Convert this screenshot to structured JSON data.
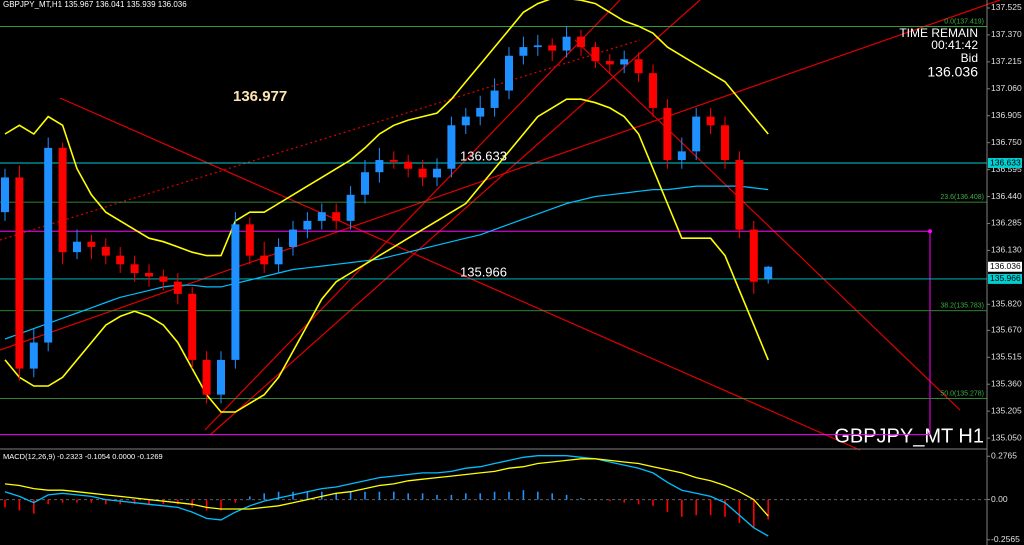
{
  "header": "GBPJPY_MT,H1  135.967 136.041 135.939 136.036",
  "info": {
    "time_label": "TIME REMAIN",
    "time": "00:41:42",
    "bid_label": "Bid"
  },
  "watermark": "GBPJPY_MT H1",
  "chart_data": [
    {
      "type": "candlestick",
      "ylim": [
        134.993,
        137.571
      ],
      "yticks": [
        137.525,
        {
          "value": 137.37,
          "label": "137.370"
        },
        137.215,
        {
          "value": 137.06,
          "label": "137.060"
        },
        136.905,
        {
          "value": 136.75,
          "label": "136.750"
        },
        136.595,
        {
          "value": 136.44,
          "label": "136.440"
        },
        136.285,
        {
          "value": 136.13,
          "label": "136.130"
        },
        {
          "value": 135.82,
          "label": "135.820"
        },
        {
          "value": 135.67,
          "label": "135.670"
        },
        135.515,
        {
          "value": 135.36,
          "label": "135.360"
        },
        135.205,
        {
          "value": 135.05,
          "label": "135.050"
        }
      ],
      "up_color": "#1e90ff",
      "down_color": "#ff0000",
      "open": [
        136.35,
        136.55,
        135.45,
        135.6,
        136.72,
        136.12,
        136.18,
        136.15,
        136.1,
        136.05,
        136.0,
        135.98,
        135.95,
        135.88,
        135.5,
        135.3,
        135.5,
        136.28,
        136.1,
        136.05,
        136.15,
        136.25,
        136.3,
        136.35,
        136.3,
        136.45,
        136.58,
        136.65,
        136.64,
        136.6,
        136.55,
        136.6,
        136.85,
        136.9,
        136.95,
        137.05,
        137.25,
        137.3,
        137.31,
        137.28,
        137.36,
        137.3,
        137.22,
        137.2,
        137.23,
        137.15,
        136.95,
        136.65,
        136.7,
        136.9,
        136.85,
        136.65,
        136.25,
        135.967
      ],
      "high": [
        136.6,
        136.62,
        135.68,
        136.78,
        136.75,
        136.25,
        136.22,
        136.2,
        136.15,
        136.1,
        136.05,
        136.02,
        136.0,
        135.92,
        135.55,
        135.55,
        136.35,
        136.32,
        136.18,
        136.2,
        136.3,
        136.35,
        136.4,
        136.4,
        136.5,
        136.65,
        136.72,
        136.7,
        136.68,
        136.65,
        136.66,
        136.9,
        136.95,
        137.02,
        137.12,
        137.3,
        137.36,
        137.37,
        137.35,
        137.42,
        137.4,
        137.33,
        137.26,
        137.28,
        137.27,
        137.2,
        137.0,
        136.78,
        136.95,
        136.95,
        136.9,
        136.7,
        136.3,
        136.041
      ],
      "low": [
        136.3,
        135.38,
        135.4,
        135.55,
        136.05,
        136.08,
        136.08,
        136.05,
        136.0,
        135.95,
        135.92,
        135.9,
        135.82,
        135.45,
        135.25,
        135.25,
        135.45,
        136.05,
        136.0,
        136.0,
        136.1,
        136.2,
        136.25,
        136.25,
        136.25,
        136.4,
        136.52,
        136.6,
        136.55,
        136.5,
        136.5,
        136.55,
        136.8,
        136.85,
        136.9,
        137.0,
        137.2,
        137.25,
        137.22,
        137.24,
        137.25,
        137.18,
        137.15,
        137.15,
        137.1,
        136.9,
        136.6,
        136.6,
        136.65,
        136.8,
        136.6,
        136.2,
        135.88,
        135.939
      ],
      "close": [
        136.55,
        135.45,
        135.6,
        136.72,
        136.12,
        136.18,
        136.15,
        136.1,
        136.05,
        136.0,
        135.98,
        135.95,
        135.88,
        135.5,
        135.3,
        135.5,
        136.28,
        136.1,
        136.05,
        136.15,
        136.25,
        136.3,
        136.35,
        136.3,
        136.45,
        136.58,
        136.65,
        136.64,
        136.6,
        136.55,
        136.6,
        136.85,
        136.9,
        136.95,
        137.05,
        137.25,
        137.3,
        137.31,
        137.28,
        137.36,
        137.3,
        137.22,
        137.2,
        137.23,
        137.15,
        136.95,
        136.65,
        136.7,
        136.9,
        136.85,
        136.65,
        136.25,
        135.95,
        136.036
      ],
      "series": [
        {
          "color": "#00bfff",
          "values": [
            135.62,
            135.65,
            135.68,
            135.71,
            135.74,
            135.77,
            135.8,
            135.83,
            135.86,
            135.88,
            135.9,
            135.92,
            135.93,
            135.93,
            135.92,
            135.92,
            135.94,
            135.96,
            135.98,
            136.0,
            136.02,
            136.03,
            136.04,
            136.05,
            136.06,
            136.07,
            136.08,
            136.1,
            136.12,
            136.14,
            136.16,
            136.18,
            136.2,
            136.22,
            136.25,
            136.28,
            136.31,
            136.34,
            136.37,
            136.4,
            136.42,
            136.44,
            136.45,
            136.46,
            136.47,
            136.48,
            136.48,
            136.49,
            136.5,
            136.5,
            136.5,
            136.5,
            136.49,
            136.48
          ]
        },
        {
          "color": "#ffff00",
          "values": [
            136.8,
            136.85,
            136.8,
            136.9,
            136.85,
            136.6,
            136.45,
            136.35,
            136.3,
            136.25,
            136.2,
            136.18,
            136.15,
            136.12,
            136.1,
            136.1,
            136.3,
            136.35,
            136.35,
            136.4,
            136.45,
            136.5,
            136.55,
            136.6,
            136.65,
            136.72,
            136.8,
            136.85,
            136.88,
            136.9,
            136.92,
            137.0,
            137.1,
            137.2,
            137.3,
            137.4,
            137.5,
            137.55,
            137.58,
            137.58,
            137.57,
            137.55,
            137.5,
            137.45,
            137.42,
            137.38,
            137.3,
            137.25,
            137.2,
            137.15,
            137.1,
            137.0,
            136.9,
            136.8
          ]
        },
        {
          "color": "#ffff00",
          "values": [
            135.5,
            135.4,
            135.35,
            135.35,
            135.4,
            135.5,
            135.6,
            135.7,
            135.75,
            135.78,
            135.75,
            135.7,
            135.6,
            135.45,
            135.3,
            135.2,
            135.2,
            135.25,
            135.3,
            135.4,
            135.55,
            135.7,
            135.85,
            135.95,
            136.0,
            136.05,
            136.1,
            136.15,
            136.2,
            136.25,
            136.3,
            136.35,
            136.4,
            136.5,
            136.6,
            136.7,
            136.8,
            136.9,
            136.95,
            137.0,
            137.0,
            136.98,
            136.95,
            136.9,
            136.8,
            136.6,
            136.4,
            136.2,
            136.2,
            136.2,
            136.1,
            135.9,
            135.7,
            135.5
          ]
        }
      ],
      "levels": [
        {
          "value": 136.633,
          "color": "#00ced1"
        },
        {
          "value": 135.966,
          "color": "#00ced1"
        }
      ],
      "fib_levels": [
        {
          "value": 137.419,
          "label": "0.0(137.419)"
        },
        {
          "value": 136.408,
          "label": "23.6(136.408)"
        },
        {
          "value": 135.783,
          "label": "38.2(135.783)"
        },
        {
          "value": 135.278,
          "label": "50.0(135.278)"
        }
      ],
      "fib_color": "#3cb043",
      "rectangle": {
        "top": 136.24,
        "bottom": 135.07,
        "color": "#ff00ff"
      },
      "annotations": [
        {
          "value": 136.977,
          "color": "#ffe4b5"
        },
        {
          "value": 136.633,
          "color": "#ffffff"
        },
        {
          "value": 135.966,
          "color": "#ffffff"
        }
      ]
    },
    {
      "type": "macd",
      "title": "MACD(12,26,9) -0.2323 -0.1054 0.0000 -0.1269",
      "ylim": [
        -0.29,
        0.31
      ],
      "yticks": [
        0.2765,
        {
          "value": 0,
          "label": "0.00"
        },
        -0.2565
      ],
      "pos_color": "#1e90ff",
      "neg_color": "#ff0000",
      "histogram": [
        -0.05,
        -0.07,
        -0.09,
        -0.03,
        -0.02,
        -0.02,
        -0.02,
        -0.03,
        -0.03,
        -0.03,
        -0.03,
        -0.03,
        -0.03,
        -0.05,
        -0.07,
        -0.07,
        -0.02,
        0.02,
        0.04,
        0.05,
        0.05,
        0.05,
        0.05,
        0.04,
        0.05,
        0.05,
        0.05,
        0.05,
        0.04,
        0.04,
        0.03,
        0.03,
        0.04,
        0.04,
        0.05,
        0.05,
        0.06,
        0.05,
        0.04,
        0.03,
        0.01,
        0.0,
        -0.01,
        -0.02,
        -0.03,
        -0.04,
        -0.08,
        -0.11,
        -0.1,
        -0.1,
        -0.11,
        -0.15,
        -0.18,
        -0.1269
      ],
      "series": [
        {
          "color": "#00bfff",
          "values": [
            0.05,
            0.02,
            -0.02,
            0.03,
            0.04,
            0.03,
            0.02,
            0.0,
            -0.01,
            -0.02,
            -0.03,
            -0.04,
            -0.05,
            -0.08,
            -0.12,
            -0.13,
            -0.08,
            -0.04,
            -0.01,
            0.01,
            0.03,
            0.05,
            0.07,
            0.08,
            0.1,
            0.12,
            0.14,
            0.15,
            0.16,
            0.17,
            0.17,
            0.18,
            0.2,
            0.21,
            0.23,
            0.25,
            0.27,
            0.28,
            0.28,
            0.28,
            0.27,
            0.26,
            0.24,
            0.22,
            0.2,
            0.17,
            0.11,
            0.06,
            0.04,
            0.02,
            -0.02,
            -0.1,
            -0.18,
            -0.2323
          ]
        },
        {
          "color": "#ffff00",
          "values": [
            0.1,
            0.09,
            0.07,
            0.06,
            0.06,
            0.05,
            0.04,
            0.03,
            0.02,
            0.01,
            0.0,
            -0.01,
            -0.02,
            -0.03,
            -0.05,
            -0.06,
            -0.06,
            -0.06,
            -0.05,
            -0.04,
            -0.02,
            0.0,
            0.02,
            0.04,
            0.05,
            0.07,
            0.09,
            0.1,
            0.12,
            0.13,
            0.14,
            0.15,
            0.16,
            0.17,
            0.18,
            0.2,
            0.21,
            0.23,
            0.24,
            0.25,
            0.26,
            0.26,
            0.25,
            0.24,
            0.23,
            0.21,
            0.19,
            0.17,
            0.14,
            0.12,
            0.09,
            0.05,
            0.0,
            -0.1054
          ]
        }
      ]
    }
  ]
}
